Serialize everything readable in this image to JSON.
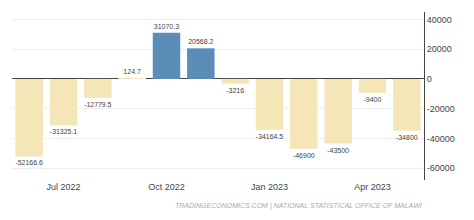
{
  "chart_data": {
    "type": "bar",
    "categories": [
      null,
      "Jul 2022",
      null,
      null,
      "Oct 2022",
      null,
      null,
      "Jan 2023",
      null,
      null,
      "Apr 2023",
      null
    ],
    "values": [
      -52166.6,
      -31325.1,
      -12779.5,
      124.7,
      31070.3,
      20568.2,
      -3216,
      -34164.5,
      -46900,
      -43500,
      -9400,
      -34800
    ],
    "colors": [
      "#f5e6b8",
      "#f5e6b8",
      "#f5e6b8",
      "#f5e6b8",
      "#5b8db8",
      "#5b8db8",
      "#f5e6b8",
      "#f5e6b8",
      "#f5e6b8",
      "#f5e6b8",
      "#f5e6b8",
      "#f5e6b8"
    ],
    "ylim": [
      -68000,
      45000
    ],
    "yticks": [
      -60000,
      -40000,
      -20000,
      0,
      20000,
      40000
    ],
    "grid": true,
    "data_labels": true,
    "annotations": [
      "TRADINGECONOMICS.COM | NATIONAL STATISTICAL OFFICE OF MALAWI"
    ]
  }
}
